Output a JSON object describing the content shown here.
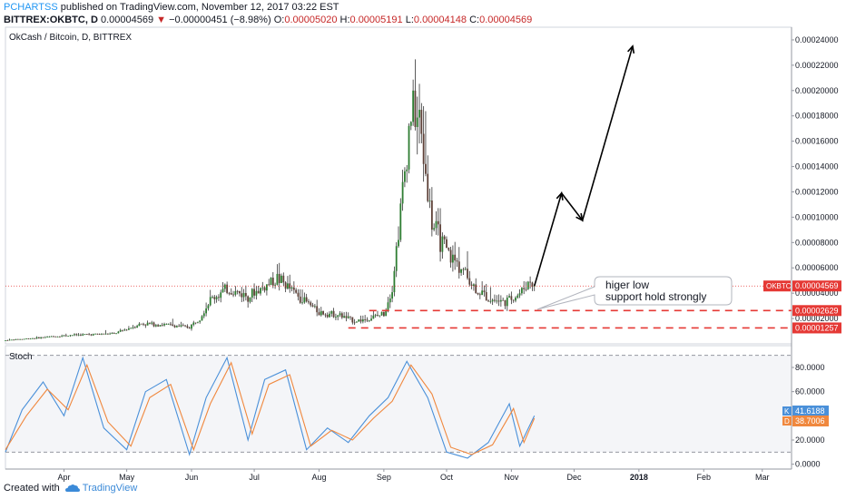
{
  "header": {
    "author": "PCHARTSS",
    "published": "published on TradingView.com, November 12, 2017 03:22 EST",
    "symbol": "BITTREX:OKBTC, D",
    "last": "0.00004569",
    "change_arrow": "▼",
    "change": "−0.00000451 (−8.98%)",
    "o_label": "O:",
    "o_value": "0.00005020",
    "h_label": "H:",
    "h_value": "0.00005191",
    "l_label": "L:",
    "l_value": "0.00004148",
    "c_label": "C:",
    "c_value": "0.00004569"
  },
  "footer": {
    "created_with": "Created with",
    "brand": "TradingView"
  },
  "colors": {
    "up": "#2e7d32",
    "down": "#5d4037",
    "accent_red": "#e53935",
    "stoch_k": "#4a90d9",
    "stoch_d": "#f0883e",
    "annotation": "#000000"
  },
  "chart_data": [
    {
      "type": "candlestick",
      "title": "OkCash / Bitcoin, D, BITTREX",
      "ylim": [
        0,
        0.00025
      ],
      "ticks": [
        "0.00024000",
        "0.00022000",
        "0.00020000",
        "0.00018000",
        "0.00016000",
        "0.00014000",
        "0.00012000",
        "0.00010000",
        "0.00008000",
        "0.00006000",
        "0.00004000",
        "0.00002000"
      ],
      "x_ticks": [
        "Apr",
        "May",
        "Jun",
        "Jul",
        "Aug",
        "Sep",
        "Oct",
        "Nov",
        "Dec",
        "2018",
        "Feb",
        "Mar"
      ],
      "x_range": [
        "2017-03-04",
        "2018-03-15"
      ],
      "last_price_label": "OKBTC",
      "last_price": 4.569e-05,
      "levels": [
        {
          "label": "0.00002629",
          "value": 2.629e-05,
          "from": "2017-08-25"
        },
        {
          "label": "0.00001257",
          "value": 1.257e-05,
          "from": "2017-08-15"
        }
      ],
      "series": [
        {
          "type": "close_path",
          "x": [
            "2017-03-04",
            "2017-03-20",
            "2017-04-05",
            "2017-04-25",
            "2017-05-08",
            "2017-05-20",
            "2017-05-31",
            "2017-06-05",
            "2017-06-10",
            "2017-06-18",
            "2017-06-28",
            "2017-07-05",
            "2017-07-12",
            "2017-07-22",
            "2017-08-01",
            "2017-08-10",
            "2017-08-18",
            "2017-08-25",
            "2017-09-01",
            "2017-09-05",
            "2017-09-10",
            "2017-09-14",
            "2017-09-18",
            "2017-09-24",
            "2017-10-01",
            "2017-10-08",
            "2017-10-15",
            "2017-10-22",
            "2017-10-29",
            "2017-11-05",
            "2017-11-10",
            "2017-11-12"
          ],
          "y": [
            2.8e-06,
            4.8e-06,
            7e-06,
            8e-06,
            1.6e-05,
            1.5e-05,
            1.3e-05,
            2.1e-05,
            3.5e-05,
            4.3e-05,
            3.8e-05,
            4.4e-05,
            5.2e-05,
            3.8e-05,
            2.5e-05,
            2.3e-05,
            1.8e-05,
            2e-05,
            2.4e-05,
            4.5e-05,
            0.00012,
            0.000185,
            0.000175,
            9.5e-05,
            7.2e-05,
            6e-05,
            4.3e-05,
            3.5e-05,
            3.3e-05,
            4e-05,
            5e-05,
            4.57e-05
          ]
        }
      ],
      "projection": {
        "x": [
          "2017-11-12",
          "2017-11-25",
          "2017-12-05",
          "2017-12-29"
        ],
        "y": [
          4.57e-05,
          0.000119,
          9.75e-05,
          0.000235
        ]
      },
      "annotation": [
        "higer low",
        "support hold strongly"
      ]
    },
    {
      "type": "line",
      "title": "Stoch",
      "ylim": [
        -4,
        98
      ],
      "ticks": [
        "80.0000",
        "60.0000",
        "40.0000",
        "20.0000",
        "0.0000"
      ],
      "bands": [
        90,
        10
      ],
      "series": [
        {
          "name": "K",
          "value_label": "41.6188",
          "x": [
            "2017-03-04",
            "2017-03-12",
            "2017-03-22",
            "2017-04-01",
            "2017-04-10",
            "2017-04-20",
            "2017-05-01",
            "2017-05-10",
            "2017-05-20",
            "2017-05-31",
            "2017-06-08",
            "2017-06-18",
            "2017-06-28",
            "2017-07-06",
            "2017-07-16",
            "2017-07-26",
            "2017-08-05",
            "2017-08-15",
            "2017-08-25",
            "2017-09-03",
            "2017-09-12",
            "2017-09-22",
            "2017-10-01",
            "2017-10-11",
            "2017-10-21",
            "2017-10-31",
            "2017-11-05",
            "2017-11-12"
          ],
          "y": [
            10,
            45,
            68,
            40,
            88,
            30,
            12,
            60,
            70,
            8,
            55,
            88,
            20,
            70,
            78,
            12,
            30,
            18,
            40,
            55,
            85,
            55,
            10,
            5,
            18,
            50,
            15,
            40
          ]
        },
        {
          "name": "D",
          "value_label": "38.7006",
          "x": [
            "2017-03-04",
            "2017-03-14",
            "2017-03-24",
            "2017-04-03",
            "2017-04-12",
            "2017-04-22",
            "2017-05-03",
            "2017-05-12",
            "2017-05-22",
            "2017-06-02",
            "2017-06-10",
            "2017-06-20",
            "2017-06-30",
            "2017-07-08",
            "2017-07-18",
            "2017-07-28",
            "2017-08-07",
            "2017-08-17",
            "2017-08-27",
            "2017-09-05",
            "2017-09-14",
            "2017-09-24",
            "2017-10-03",
            "2017-10-13",
            "2017-10-23",
            "2017-11-02",
            "2017-11-07",
            "2017-11-12"
          ],
          "y": [
            12,
            40,
            62,
            45,
            82,
            35,
            15,
            55,
            66,
            12,
            50,
            84,
            25,
            66,
            74,
            15,
            28,
            20,
            38,
            52,
            82,
            58,
            14,
            8,
            16,
            46,
            18,
            38
          ]
        }
      ]
    }
  ]
}
